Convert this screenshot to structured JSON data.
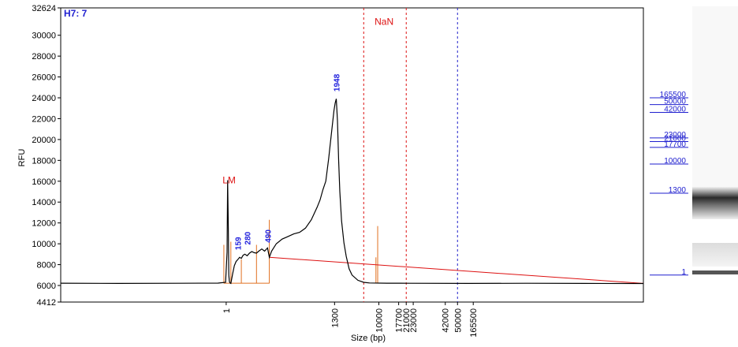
{
  "chart_data": {
    "type": "line",
    "panel_id": "H7: 7",
    "xlabel": "Size (bp)",
    "ylabel": "RFU",
    "ylim": [
      4412,
      32624
    ],
    "ytick_labels": [
      "32624",
      "30000",
      "28000",
      "26000",
      "24000",
      "22000",
      "20000",
      "18000",
      "16000",
      "14000",
      "12000",
      "10000",
      "8000",
      "6000",
      "4412"
    ],
    "yticks": [
      32624,
      30000,
      28000,
      26000,
      24000,
      22000,
      20000,
      18000,
      16000,
      14000,
      12000,
      10000,
      8000,
      6000,
      4412
    ],
    "xticks": [
      {
        "label": "1",
        "pos": 0.284
      },
      {
        "label": "1300",
        "pos": 0.47
      },
      {
        "label": "10000",
        "pos": 0.546
      },
      {
        "label": "17700",
        "pos": 0.58
      },
      {
        "label": "21000",
        "pos": 0.593
      },
      {
        "label": "23000",
        "pos": 0.605
      },
      {
        "label": "42000",
        "pos": 0.66
      },
      {
        "label": "50000",
        "pos": 0.681
      },
      {
        "label": "165500",
        "pos": 0.708
      }
    ],
    "peak_labels": [
      {
        "label": "LM",
        "x": 0.289,
        "y": 15800,
        "color": "#dd1111"
      },
      {
        "label": "159",
        "x": 0.304,
        "y": 9400,
        "color": "#2222dd"
      },
      {
        "label": "280",
        "x": 0.32,
        "y": 9900,
        "color": "#2222dd"
      },
      {
        "label": "490",
        "x": 0.355,
        "y": 10100,
        "color": "#2222dd"
      },
      {
        "label": "1948",
        "x": 0.473,
        "y": 24600,
        "color": "#2222dd"
      },
      {
        "label": "NaN",
        "x": 0.555,
        "y": 31000,
        "color": "#dd1111"
      }
    ],
    "markers": [
      {
        "x": 0.52,
        "style": "red-dashed"
      },
      {
        "x": 0.593,
        "style": "red-dashed"
      },
      {
        "x": 0.681,
        "style": "blue-dashed"
      }
    ],
    "orange_lines": [
      {
        "x": 0.28,
        "y": 9900
      },
      {
        "x": 0.292,
        "y": 10200
      },
      {
        "x": 0.31,
        "y": 8500
      },
      {
        "x": 0.336,
        "y": 9900
      },
      {
        "x": 0.358,
        "y": 12300
      },
      {
        "x": 0.541,
        "y": 8700
      },
      {
        "x": 0.544,
        "y": 11700
      }
    ],
    "baseline": {
      "x0": 0.358,
      "y0": 8700,
      "x1": 1.0,
      "y1": 6200
    },
    "series": [
      {
        "x": [
          0.0,
          0.1,
          0.2,
          0.27,
          0.283,
          0.2855,
          0.2865,
          0.2875,
          0.2885,
          0.2895,
          0.2905,
          0.292,
          0.295,
          0.298,
          0.301,
          0.304,
          0.307,
          0.31,
          0.313,
          0.316,
          0.32,
          0.324,
          0.328,
          0.332,
          0.336,
          0.34,
          0.345,
          0.35,
          0.355,
          0.358,
          0.362,
          0.37,
          0.38,
          0.39,
          0.4,
          0.41,
          0.42,
          0.43,
          0.435,
          0.44,
          0.445,
          0.45,
          0.455,
          0.46,
          0.463,
          0.466,
          0.469,
          0.471,
          0.473,
          0.475,
          0.477,
          0.479,
          0.482,
          0.486,
          0.49,
          0.495,
          0.5,
          0.51,
          0.52,
          0.53,
          0.56,
          0.6,
          0.7,
          0.8,
          0.9,
          1.0
        ],
        "y": [
          6220,
          6200,
          6210,
          6230,
          6300,
          9200,
          16100,
          12000,
          7000,
          6400,
          6250,
          6200,
          7100,
          7900,
          8300,
          8500,
          8700,
          8600,
          8900,
          9000,
          8850,
          9100,
          9250,
          9150,
          9100,
          9300,
          9500,
          9300,
          9600,
          8700,
          9300,
          10000,
          10450,
          10700,
          10950,
          11100,
          11500,
          12300,
          12900,
          13500,
          14200,
          15200,
          16000,
          18200,
          19800,
          21300,
          22800,
          23500,
          23900,
          21800,
          18000,
          15000,
          12200,
          10100,
          8800,
          7600,
          7000,
          6500,
          6300,
          6240,
          6220,
          6210,
          6200,
          6210,
          6200,
          6190
        ]
      }
    ],
    "right_ladder": [
      {
        "label": "165500",
        "y": 24000
      },
      {
        "label": "50000",
        "y": 23350
      },
      {
        "label": "42000",
        "y": 22600
      },
      {
        "label": "23000",
        "y": 20150
      },
      {
        "label": "21000",
        "y": 19800
      },
      {
        "label": "17700",
        "y": 19250
      },
      {
        "label": "10000",
        "y": 17650
      },
      {
        "label": "1300",
        "y": 14850
      },
      {
        "label": "1",
        "y": 7000
      }
    ]
  }
}
